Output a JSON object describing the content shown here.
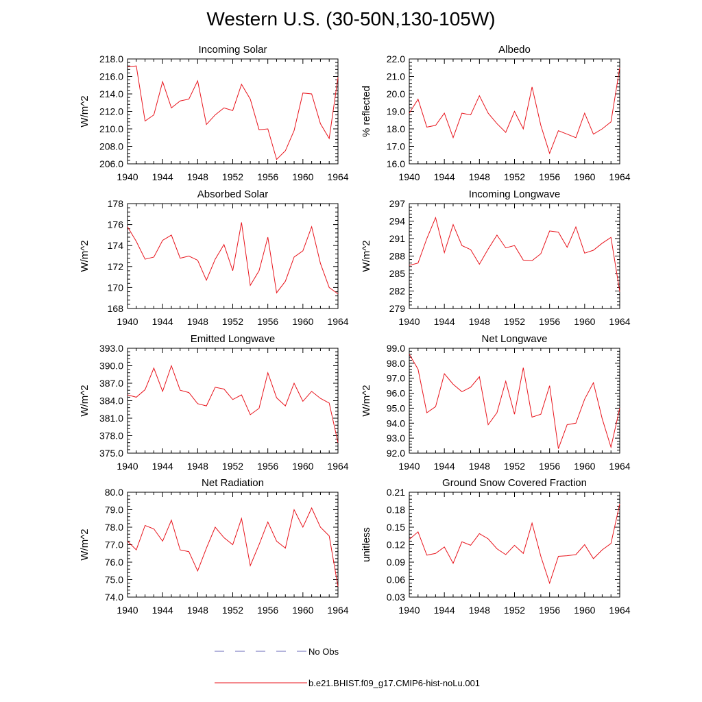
{
  "title": "Western U.S. (30-50N,130-105W)",
  "colors": {
    "model": "#e8141c",
    "obs": "#6a6ab8",
    "axis": "#000000"
  },
  "legend": {
    "obs_label": "No Obs",
    "model_label": "b.e21.BHIST.f09_g17.CMIP6-hist-noLu.001"
  },
  "chart_data": [
    {
      "type": "line",
      "title": "Incoming Solar",
      "xlabel": "",
      "ylabel": "W/m^2",
      "xlim": [
        1940,
        1964
      ],
      "ylim": [
        206.0,
        218.0
      ],
      "xticks": [
        "1940",
        "1944",
        "1948",
        "1952",
        "1956",
        "1960",
        "1964"
      ],
      "yticks": [
        "206.0",
        "208.0",
        "210.0",
        "212.0",
        "214.0",
        "216.0",
        "218.0"
      ],
      "x": [
        1940,
        1941,
        1942,
        1943,
        1944,
        1945,
        1946,
        1947,
        1948,
        1949,
        1950,
        1951,
        1952,
        1953,
        1954,
        1955,
        1956,
        1957,
        1958,
        1959,
        1960,
        1961,
        1962,
        1963,
        1964
      ],
      "series": [
        {
          "name": "b.e21.BHIST.f09_g17.CMIP6-hist-noLu.001",
          "values": [
            217.1,
            217.2,
            210.9,
            211.6,
            215.4,
            212.4,
            213.2,
            213.4,
            215.5,
            210.5,
            211.6,
            212.4,
            212.1,
            215.1,
            213.4,
            209.9,
            210.0,
            206.5,
            207.5,
            209.8,
            214.1,
            214.0,
            210.6,
            208.9,
            215.9
          ]
        }
      ]
    },
    {
      "type": "line",
      "title": "Albedo",
      "xlabel": "",
      "ylabel": "% reflected",
      "xlim": [
        1940,
        1964
      ],
      "ylim": [
        16.0,
        22.0
      ],
      "xticks": [
        "1940",
        "1944",
        "1948",
        "1952",
        "1956",
        "1960",
        "1964"
      ],
      "yticks": [
        "16.0",
        "17.0",
        "18.0",
        "19.0",
        "20.0",
        "21.0",
        "22.0"
      ],
      "x": [
        1940,
        1941,
        1942,
        1943,
        1944,
        1945,
        1946,
        1947,
        1948,
        1949,
        1950,
        1951,
        1952,
        1953,
        1954,
        1955,
        1956,
        1957,
        1958,
        1959,
        1960,
        1961,
        1962,
        1963,
        1964
      ],
      "series": [
        {
          "name": "b.e21.BHIST.f09_g17.CMIP6-hist-noLu.001",
          "values": [
            18.9,
            19.7,
            18.1,
            18.2,
            18.9,
            17.5,
            18.9,
            18.8,
            19.9,
            18.9,
            18.3,
            17.8,
            19.0,
            18.0,
            20.4,
            18.2,
            16.6,
            17.9,
            17.7,
            17.5,
            18.9,
            17.7,
            18.0,
            18.4,
            21.5
          ]
        }
      ]
    },
    {
      "type": "line",
      "title": "Absorbed Solar",
      "xlabel": "",
      "ylabel": "W/m^2",
      "xlim": [
        1940,
        1964
      ],
      "ylim": [
        168,
        178
      ],
      "xticks": [
        "1940",
        "1944",
        "1948",
        "1952",
        "1956",
        "1960",
        "1964"
      ],
      "yticks": [
        "168",
        "170",
        "172",
        "174",
        "176",
        "178"
      ],
      "x": [
        1940,
        1941,
        1942,
        1943,
        1944,
        1945,
        1946,
        1947,
        1948,
        1949,
        1950,
        1951,
        1952,
        1953,
        1954,
        1955,
        1956,
        1957,
        1958,
        1959,
        1960,
        1961,
        1962,
        1963,
        1964
      ],
      "series": [
        {
          "name": "b.e21.BHIST.f09_g17.CMIP6-hist-noLu.001",
          "values": [
            175.8,
            174.4,
            172.7,
            172.9,
            174.5,
            175.0,
            172.8,
            173.0,
            172.6,
            170.7,
            172.7,
            174.1,
            171.6,
            176.2,
            170.2,
            171.6,
            174.8,
            169.5,
            170.6,
            172.9,
            173.5,
            175.8,
            172.3,
            170.0,
            169.4
          ]
        }
      ]
    },
    {
      "type": "line",
      "title": "Incoming Longwave",
      "xlabel": "",
      "ylabel": "W/m^2",
      "xlim": [
        1940,
        1964
      ],
      "ylim": [
        279,
        297
      ],
      "xticks": [
        "1940",
        "1944",
        "1948",
        "1952",
        "1956",
        "1960",
        "1964"
      ],
      "yticks": [
        "279",
        "282",
        "285",
        "288",
        "291",
        "294",
        "297"
      ],
      "x": [
        1940,
        1941,
        1942,
        1943,
        1944,
        1945,
        1946,
        1947,
        1948,
        1949,
        1950,
        1951,
        1952,
        1953,
        1954,
        1955,
        1956,
        1957,
        1958,
        1959,
        1960,
        1961,
        1962,
        1963,
        1964
      ],
      "series": [
        {
          "name": "b.e21.BHIST.f09_g17.CMIP6-hist-noLu.001",
          "values": [
            286.4,
            286.8,
            291.0,
            294.6,
            288.6,
            293.4,
            289.8,
            289.1,
            286.6,
            289.2,
            291.6,
            289.4,
            289.8,
            287.3,
            287.2,
            288.4,
            292.3,
            292.1,
            289.5,
            293.0,
            288.5,
            289.0,
            290.2,
            291.2,
            281.9
          ]
        }
      ]
    },
    {
      "type": "line",
      "title": "Emitted Longwave",
      "xlabel": "",
      "ylabel": "W/m^2",
      "xlim": [
        1940,
        1964
      ],
      "ylim": [
        375.0,
        393.0
      ],
      "xticks": [
        "1940",
        "1944",
        "1948",
        "1952",
        "1956",
        "1960",
        "1964"
      ],
      "yticks": [
        "375.0",
        "378.0",
        "381.0",
        "384.0",
        "387.0",
        "390.0",
        "393.0"
      ],
      "x": [
        1940,
        1941,
        1942,
        1943,
        1944,
        1945,
        1946,
        1947,
        1948,
        1949,
        1950,
        1951,
        1952,
        1953,
        1954,
        1955,
        1956,
        1957,
        1958,
        1959,
        1960,
        1961,
        1962,
        1963,
        1964
      ],
      "series": [
        {
          "name": "b.e21.BHIST.f09_g17.CMIP6-hist-noLu.001",
          "values": [
            385.0,
            384.6,
            385.9,
            389.6,
            385.6,
            390.0,
            385.8,
            385.4,
            383.5,
            383.1,
            386.3,
            386.0,
            384.2,
            385.0,
            381.6,
            382.7,
            388.8,
            384.5,
            383.1,
            387.0,
            383.9,
            385.6,
            384.4,
            383.6,
            376.8
          ]
        }
      ]
    },
    {
      "type": "line",
      "title": "Net Longwave",
      "xlabel": "",
      "ylabel": "W/m^2",
      "xlim": [
        1940,
        1964
      ],
      "ylim": [
        92.0,
        99.0
      ],
      "xticks": [
        "1940",
        "1944",
        "1948",
        "1952",
        "1956",
        "1960",
        "1964"
      ],
      "yticks": [
        "92.0",
        "93.0",
        "94.0",
        "95.0",
        "96.0",
        "97.0",
        "98.0",
        "99.0"
      ],
      "x": [
        1940,
        1941,
        1942,
        1943,
        1944,
        1945,
        1946,
        1947,
        1948,
        1949,
        1950,
        1951,
        1952,
        1953,
        1954,
        1955,
        1956,
        1957,
        1958,
        1959,
        1960,
        1961,
        1962,
        1963,
        1964
      ],
      "series": [
        {
          "name": "b.e21.BHIST.f09_g17.CMIP6-hist-noLu.001",
          "values": [
            98.6,
            97.6,
            94.7,
            95.1,
            97.3,
            96.6,
            96.1,
            96.4,
            97.1,
            93.9,
            94.7,
            96.8,
            94.6,
            97.7,
            94.4,
            94.6,
            96.5,
            92.3,
            93.9,
            94.0,
            95.6,
            96.7,
            94.3,
            92.4,
            95.0
          ]
        }
      ]
    },
    {
      "type": "line",
      "title": "Net Radiation",
      "xlabel": "",
      "ylabel": "W/m^2",
      "xlim": [
        1940,
        1964
      ],
      "ylim": [
        74.0,
        80.0
      ],
      "xticks": [
        "1940",
        "1944",
        "1948",
        "1952",
        "1956",
        "1960",
        "1964"
      ],
      "yticks": [
        "74.0",
        "75.0",
        "76.0",
        "77.0",
        "78.0",
        "79.0",
        "80.0"
      ],
      "x": [
        1940,
        1941,
        1942,
        1943,
        1944,
        1945,
        1946,
        1947,
        1948,
        1949,
        1950,
        1951,
        1952,
        1953,
        1954,
        1955,
        1956,
        1957,
        1958,
        1959,
        1960,
        1961,
        1962,
        1963,
        1964
      ],
      "series": [
        {
          "name": "b.e21.BHIST.f09_g17.CMIP6-hist-noLu.001",
          "values": [
            77.2,
            76.7,
            78.1,
            77.9,
            77.2,
            78.4,
            76.7,
            76.6,
            75.5,
            76.8,
            78.0,
            77.4,
            77.0,
            78.5,
            75.8,
            77.0,
            78.3,
            77.2,
            76.8,
            79.0,
            78.0,
            79.1,
            78.0,
            77.5,
            74.6
          ]
        }
      ]
    },
    {
      "type": "line",
      "title": "Ground Snow Covered Fraction",
      "xlabel": "",
      "ylabel": "unitless",
      "xlim": [
        1940,
        1964
      ],
      "ylim": [
        0.03,
        0.21
      ],
      "xticks": [
        "1940",
        "1944",
        "1948",
        "1952",
        "1956",
        "1960",
        "1964"
      ],
      "yticks": [
        "0.03",
        "0.06",
        "0.09",
        "0.12",
        "0.15",
        "0.18",
        "0.21"
      ],
      "x": [
        1940,
        1941,
        1942,
        1943,
        1944,
        1945,
        1946,
        1947,
        1948,
        1949,
        1950,
        1951,
        1952,
        1953,
        1954,
        1955,
        1956,
        1957,
        1958,
        1959,
        1960,
        1961,
        1962,
        1963,
        1964
      ],
      "series": [
        {
          "name": "b.e21.BHIST.f09_g17.CMIP6-hist-noLu.001",
          "values": [
            0.129,
            0.142,
            0.102,
            0.105,
            0.116,
            0.088,
            0.125,
            0.119,
            0.139,
            0.13,
            0.113,
            0.103,
            0.119,
            0.105,
            0.157,
            0.1,
            0.054,
            0.1,
            0.101,
            0.103,
            0.12,
            0.096,
            0.111,
            0.122,
            0.19
          ]
        }
      ]
    }
  ]
}
